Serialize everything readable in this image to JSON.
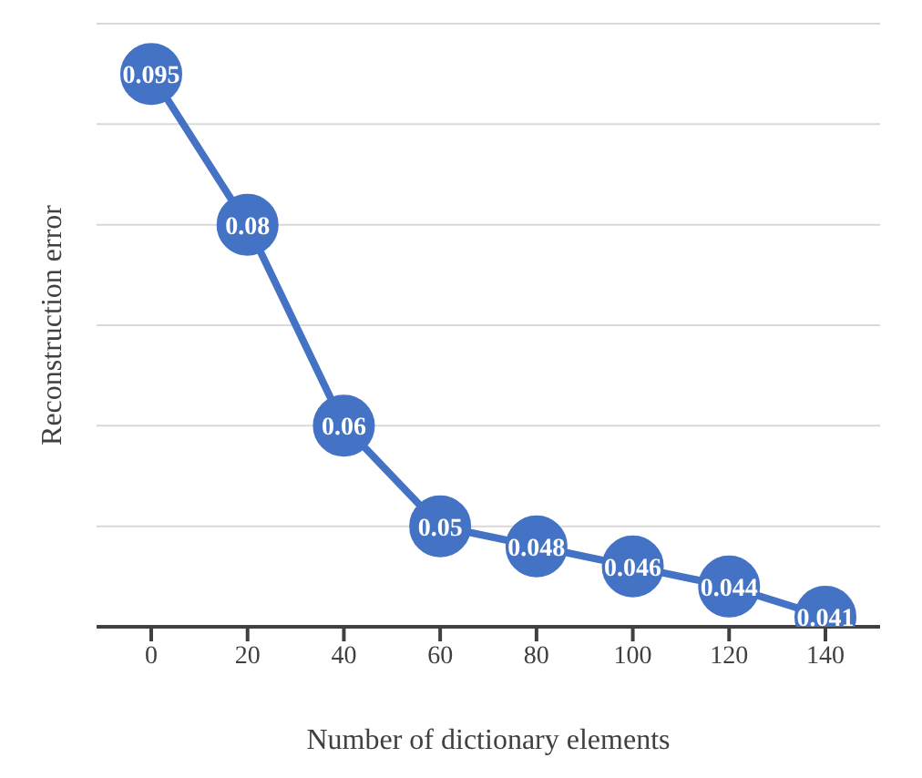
{
  "chart_data": {
    "type": "line",
    "xlabel": "Number of dictionary elements",
    "ylabel": "Reconstruction error",
    "categories": [
      "0",
      "20",
      "40",
      "60",
      "80",
      "100",
      "120",
      "140"
    ],
    "series": [
      {
        "color": "#4472c4",
        "values": [
          0.095,
          0.08,
          0.06,
          0.05,
          0.048,
          0.046,
          0.044,
          0.041
        ]
      }
    ],
    "ylim": [
      0.04,
      0.1
    ],
    "tick_labels": "x",
    "grid": "y",
    "marker": "circle",
    "data_labels": true
  }
}
